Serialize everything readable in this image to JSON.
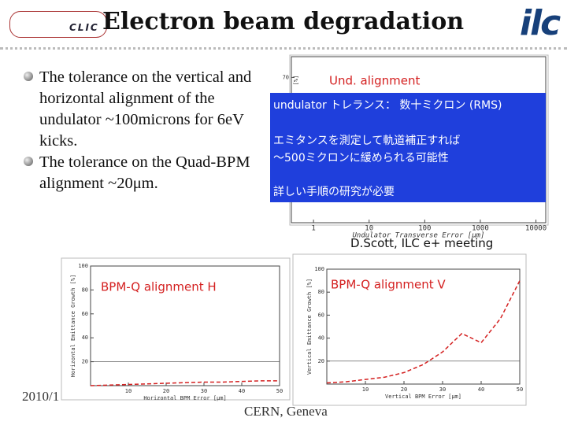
{
  "header": {
    "title": "Electron beam degradation",
    "logo_left": "CLIC",
    "logo_right": "ilc"
  },
  "bullets": [
    "The tolerance on the vertical and horizontal alignment of the undulator ~100microns for 6eV kicks.",
    "The tolerance on the Quad-BPM alignment ~20μm."
  ],
  "plots": [
    {
      "type": "line",
      "title": "Und. alignment",
      "y_label": "[%]",
      "x_label": "Undulator Transverse Error [μm]",
      "xlim": [
        0.4,
        15000
      ],
      "xticks": [
        1,
        10,
        100,
        1000,
        10000
      ],
      "x_log": true,
      "ylim": [
        0,
        80
      ],
      "yticks": [
        70
      ]
    },
    {
      "type": "line",
      "title": "BPM-Q alignment H",
      "y_label": "Horizontal Emittance Growth [%]",
      "x_label": "Horizontal BPM Error [μm]",
      "xlim": [
        0,
        50
      ],
      "xticks": [
        10,
        20,
        30,
        40,
        50
      ],
      "ylim": [
        0,
        100
      ],
      "yticks": [
        20,
        40,
        60,
        80,
        100
      ],
      "series": [
        {
          "color": "#d42020",
          "x": [
            0,
            5,
            10,
            15,
            20,
            25,
            30,
            35,
            40,
            45,
            50
          ],
          "values": [
            0,
            0.5,
            1,
            1.5,
            2,
            2.5,
            3,
            3,
            3.5,
            4,
            4
          ]
        }
      ]
    },
    {
      "type": "line",
      "title": "BPM-Q alignment V",
      "y_label": "Vertical Emittance Growth [%]",
      "x_label": "Vertical BPM Error [μm]",
      "xlim": [
        0,
        50
      ],
      "xticks": [
        10,
        20,
        30,
        40,
        50
      ],
      "ylim": [
        0,
        100
      ],
      "yticks": [
        20,
        40,
        60,
        80,
        100
      ],
      "series": [
        {
          "color": "#d42020",
          "x": [
            0,
            5,
            10,
            15,
            20,
            25,
            30,
            35,
            40,
            45,
            50
          ],
          "values": [
            1,
            2,
            4,
            6,
            10,
            17,
            28,
            44,
            36,
            57,
            90
          ]
        }
      ]
    }
  ],
  "note": [
    "undulator トレランス： 数十ミクロン (RMS)",
    "エミタンスを測定して軌道補正すれば",
    "～500ミクロンに緩められる可能性",
    "詳しい手順の研究が必要"
  ],
  "credit": "D.Scott, ILC e+ meeting",
  "footer": {
    "date": "2010/1",
    "venue": "CERN, Geneva"
  }
}
